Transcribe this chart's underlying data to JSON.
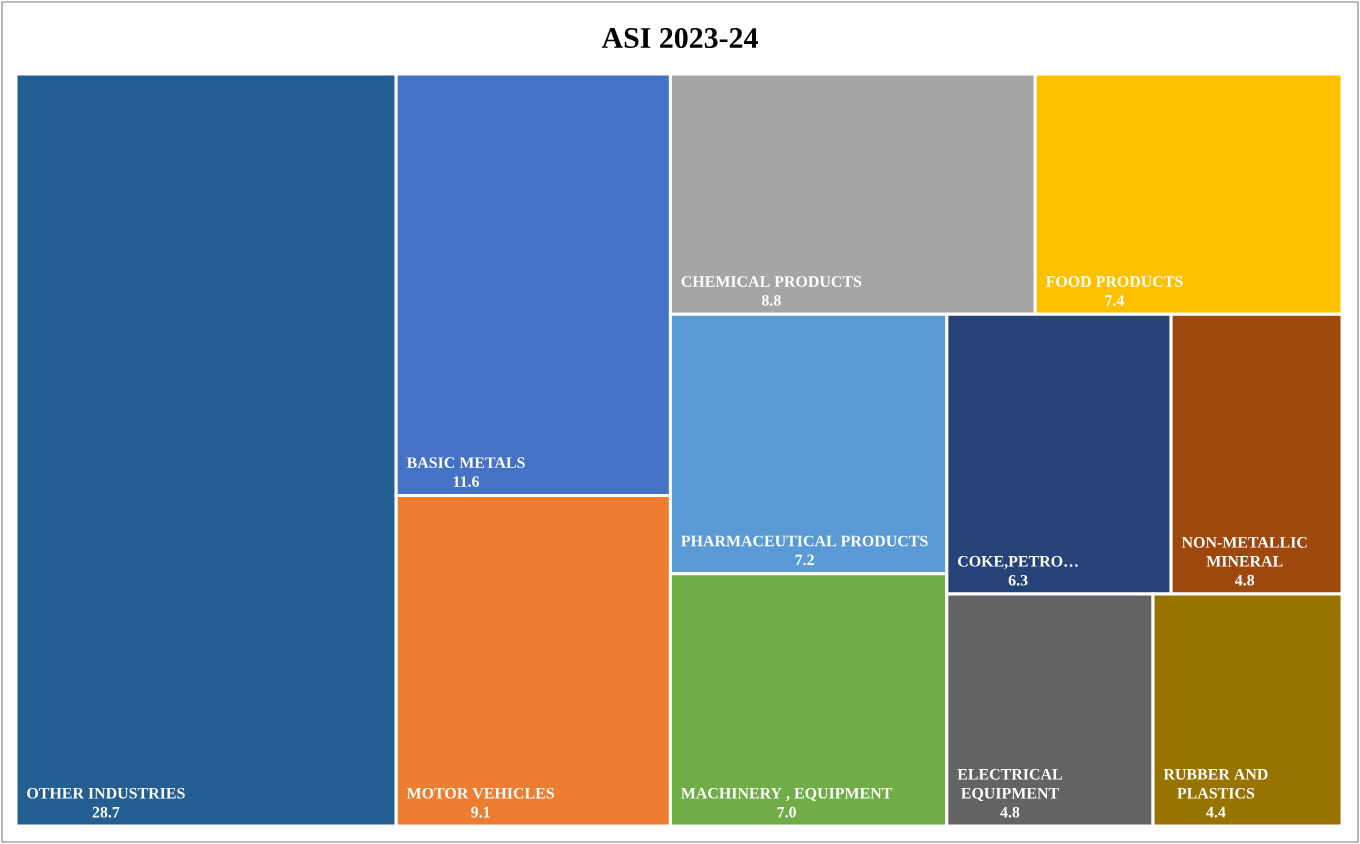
{
  "chart_data": {
    "type": "other",
    "title": "ASI 2023-24",
    "categories": [
      "OTHER INDUSTRIES",
      "BASIC METALS",
      "MOTOR VEHICLES",
      "CHEMICAL PRODUCTS",
      "FOOD PRODUCTS",
      "PHARMACEUTICAL PRODUCTS",
      "MACHINERY , EQUIPMENT",
      "COKE,PETRO…",
      "NON-METALLIC MINERAL",
      "ELECTRICAL EQUIPMENT",
      "RUBBER AND PLASTICS"
    ],
    "values": [
      28.7,
      11.6,
      9.1,
      8.8,
      7.4,
      7.2,
      7.0,
      6.3,
      4.8,
      4.8,
      4.4
    ],
    "colors": [
      "#255e91",
      "#4472c4",
      "#ed7d31",
      "#a5a5a5",
      "#ffc000",
      "#5b9bd5",
      "#70ad47",
      "#264478",
      "#9e480e",
      "#636363",
      "#997300"
    ],
    "value_labels": [
      "28.7",
      "11.6",
      "9.1",
      "8.8",
      "7.4",
      "7.2",
      "7.0",
      "6.3",
      "4.8",
      "4.8",
      "4.4"
    ]
  }
}
